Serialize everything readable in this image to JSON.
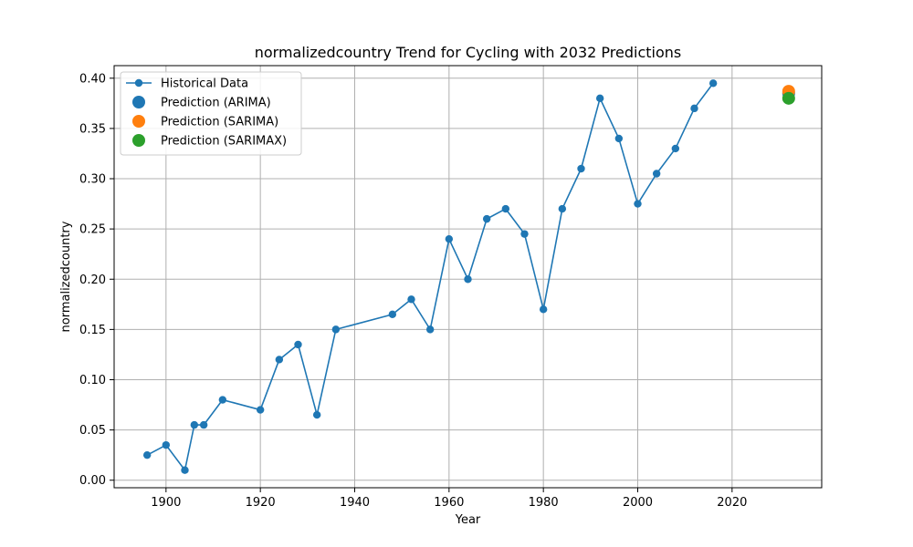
{
  "chart_data": {
    "type": "line",
    "title": "normalizedcountry Trend for Cycling with 2032 Predictions",
    "xlabel": "Year",
    "ylabel": "normalizedcountry",
    "xlim": [
      1889,
      2039
    ],
    "ylim": [
      -0.0075,
      0.4125
    ],
    "xticks": [
      "1900",
      "1920",
      "1940",
      "1960",
      "1980",
      "2000",
      "2020"
    ],
    "yticks": [
      "0.00",
      "0.05",
      "0.10",
      "0.15",
      "0.20",
      "0.25",
      "0.30",
      "0.35",
      "0.40"
    ],
    "grid": true,
    "legend_placement": "top-left",
    "series": [
      {
        "name": "Historical Data",
        "kind": "line",
        "color": "#1f77b4",
        "x": [
          1896,
          1900,
          1904,
          1906,
          1908,
          1912,
          1920,
          1924,
          1928,
          1932,
          1936,
          1948,
          1952,
          1956,
          1960,
          1964,
          1968,
          1972,
          1976,
          1980,
          1984,
          1988,
          1992,
          1996,
          2000,
          2004,
          2008,
          2012,
          2016
        ],
        "y": [
          0.025,
          0.035,
          0.01,
          0.055,
          0.055,
          0.08,
          0.07,
          0.12,
          0.135,
          0.065,
          0.15,
          0.165,
          0.18,
          0.15,
          0.24,
          0.2,
          0.26,
          0.27,
          0.245,
          0.17,
          0.27,
          0.31,
          0.38,
          0.34,
          0.275,
          0.305,
          0.33,
          0.37,
          0.395
        ]
      },
      {
        "name": "Prediction (ARIMA)",
        "kind": "scatter",
        "color": "#1f77b4",
        "x": [
          2032
        ],
        "y": [
          0.385
        ]
      },
      {
        "name": "Prediction (SARIMA)",
        "kind": "scatter",
        "color": "#ff7f0e",
        "x": [
          2032
        ],
        "y": [
          0.387
        ]
      },
      {
        "name": "Prediction (SARIMAX)",
        "kind": "scatter",
        "color": "#2ca02c",
        "x": [
          2032
        ],
        "y": [
          0.38
        ]
      }
    ]
  }
}
